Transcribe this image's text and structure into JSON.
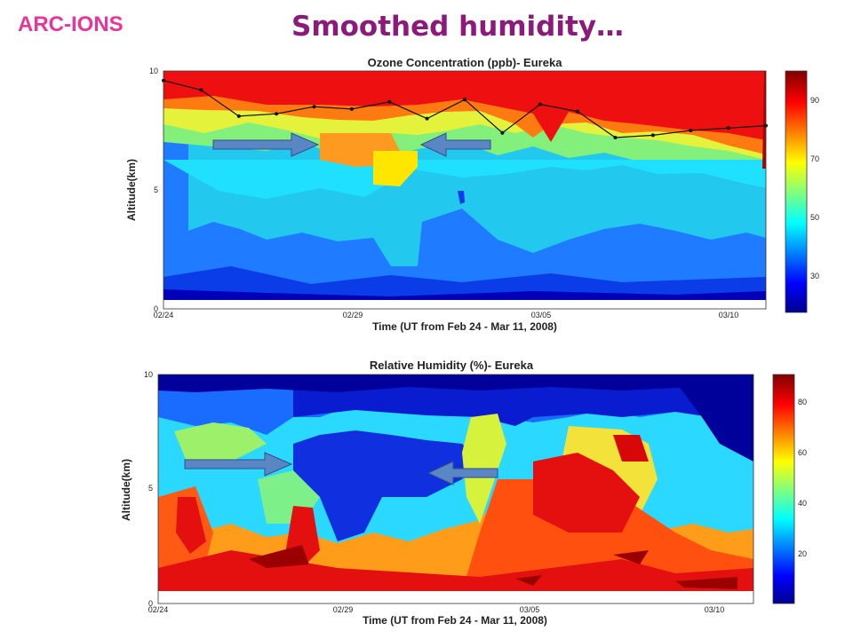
{
  "header": {
    "org": "ARC-IONS",
    "title": "Smoothed humidity…"
  },
  "chart_data": [
    {
      "type": "heatmap",
      "title": "Ozone Concentration (ppb)- Eureka",
      "xlabel": "Time (UT from Feb 24 - Mar 11, 2008)",
      "ylabel": "Altitude(km)",
      "ylim": [
        0,
        10
      ],
      "x_ticks": [
        "02/24",
        "02/29",
        "03/05",
        "03/10"
      ],
      "y_ticks": [
        "0",
        "5",
        "10"
      ],
      "colorbar": {
        "ticks": [
          "30",
          "50",
          "70",
          "90"
        ],
        "range": [
          15,
          100
        ]
      },
      "tropopause": {
        "x_days": [
          0,
          1,
          2,
          3,
          4,
          5,
          6,
          7,
          8,
          9,
          10,
          11,
          12,
          13,
          14,
          15,
          16
        ],
        "altitude_km": [
          9.6,
          9.2,
          8.1,
          8.2,
          8.5,
          8.4,
          8.7,
          8.0,
          8.8,
          7.4,
          8.6,
          8.3,
          7.2,
          7.3,
          7.5,
          7.6,
          7.7
        ]
      },
      "arrows": [
        "right-pointing arrow near day 4, 7 km",
        "left-pointing arrow near day 8.5, 7 km"
      ]
    },
    {
      "type": "heatmap",
      "title": "Relative Humidity (%)- Eureka",
      "xlabel": "Time (UT from Feb 24 - Mar 11, 2008)",
      "ylabel": "Altitude(km)",
      "ylim": [
        0,
        10
      ],
      "x_ticks": [
        "02/24",
        "02/29",
        "03/05",
        "03/10"
      ],
      "y_ticks": [
        "0",
        "5",
        "10"
      ],
      "colorbar": {
        "ticks": [
          "20",
          "40",
          "60",
          "80"
        ],
        "range": [
          0,
          90
        ]
      },
      "arrows": [
        "right-pointing arrow near day 3.5, 6 km",
        "left-pointing arrow near day 8, 5.5 km"
      ]
    }
  ]
}
